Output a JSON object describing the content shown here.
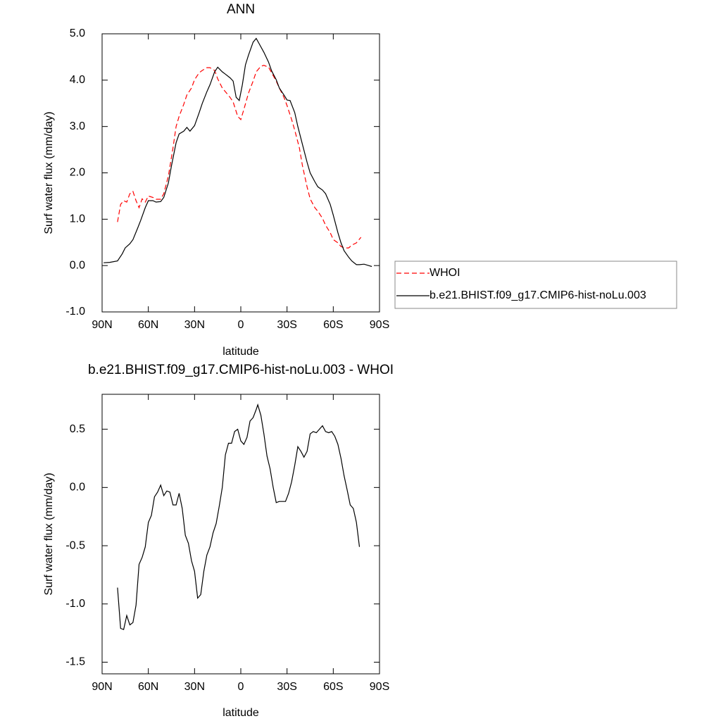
{
  "chart_data": [
    {
      "type": "line",
      "title": "ANN",
      "x_label": "latitude",
      "y_label": "Surf water flux (mm/day)",
      "xlim": [
        90,
        -90
      ],
      "xticks": [
        {
          "value": 90,
          "label": "90N"
        },
        {
          "value": 60,
          "label": "60N"
        },
        {
          "value": 30,
          "label": "30N"
        },
        0,
        {
          "value": -30,
          "label": "30S"
        },
        {
          "value": -60,
          "label": "60S"
        },
        {
          "value": -90,
          "label": "90S"
        }
      ],
      "ylim": [
        -1,
        5
      ],
      "yticks": [
        {
          "value": -1,
          "label": "-1.0"
        },
        {
          "value": 0,
          "label": "0.0"
        },
        {
          "value": 1,
          "label": "1.0"
        },
        {
          "value": 2,
          "label": "2.0"
        },
        {
          "value": 3,
          "label": "3.0"
        },
        {
          "value": 4,
          "label": "4.0"
        },
        {
          "value": 5,
          "label": "5.0"
        }
      ],
      "legend": "right",
      "series": [
        {
          "name": "WHOI",
          "color": "#ff0000",
          "dashed": true,
          "x": [
            80,
            78,
            76,
            74,
            72,
            70,
            68,
            66,
            64,
            62,
            60,
            57,
            55,
            52,
            50,
            47,
            44,
            42,
            40,
            37,
            35,
            32,
            30,
            27,
            25,
            22,
            20,
            17,
            15,
            12,
            10,
            7,
            5,
            2,
            0,
            -2,
            -5,
            -8,
            -10,
            -13,
            -15,
            -18,
            -20,
            -23,
            -25,
            -28,
            -30,
            -33,
            -35,
            -38,
            -40,
            -43,
            -45,
            -48,
            -50,
            -53,
            -55,
            -58,
            -60,
            -63,
            -65,
            -68,
            -70,
            -72,
            -75,
            -78
          ],
          "values": [
            0.94,
            1.32,
            1.4,
            1.37,
            1.55,
            1.6,
            1.4,
            1.25,
            1.44,
            1.37,
            1.5,
            1.47,
            1.43,
            1.43,
            1.55,
            1.93,
            2.54,
            3.0,
            3.22,
            3.48,
            3.68,
            3.83,
            4.01,
            4.16,
            4.21,
            4.27,
            4.27,
            4.21,
            4.03,
            3.83,
            3.75,
            3.63,
            3.53,
            3.22,
            3.15,
            3.37,
            3.72,
            3.98,
            4.18,
            4.3,
            4.32,
            4.28,
            4.16,
            3.98,
            3.83,
            3.63,
            3.45,
            3.15,
            2.92,
            2.54,
            2.15,
            1.7,
            1.44,
            1.25,
            1.17,
            1.02,
            0.87,
            0.71,
            0.56,
            0.49,
            0.41,
            0.38,
            0.38,
            0.44,
            0.49,
            0.61
          ]
        },
        {
          "name": "b.e21.BHIST.f09_g17.CMIP6-hist-noLu.003",
          "color": "#000000",
          "dashed": false,
          "x": [
            89,
            85,
            80,
            77,
            75,
            72,
            70,
            67,
            65,
            62,
            60,
            57,
            55,
            52,
            50,
            47,
            45,
            42,
            40,
            37,
            35,
            33,
            30,
            27,
            25,
            22,
            20,
            17,
            15,
            12,
            10,
            7,
            5,
            3,
            1,
            -1,
            -3,
            -5,
            -8,
            -10,
            -12,
            -15,
            -18,
            -20,
            -23,
            -25,
            -28,
            -30,
            -32,
            -35,
            -37,
            -40,
            -43,
            -45,
            -48,
            -50,
            -53,
            -55,
            -58,
            -60,
            -63,
            -65,
            -67,
            -70,
            -72,
            -75,
            -77,
            -80,
            -83,
            -85
          ],
          "values": [
            0.06,
            0.07,
            0.1,
            0.25,
            0.38,
            0.47,
            0.56,
            0.8,
            0.97,
            1.25,
            1.4,
            1.4,
            1.37,
            1.38,
            1.47,
            1.78,
            2.15,
            2.65,
            2.84,
            2.9,
            2.98,
            2.9,
            3.02,
            3.3,
            3.5,
            3.75,
            3.9,
            4.18,
            4.28,
            4.18,
            4.13,
            4.05,
            3.98,
            3.63,
            3.56,
            3.9,
            4.33,
            4.54,
            4.82,
            4.9,
            4.78,
            4.6,
            4.39,
            4.2,
            4.01,
            3.83,
            3.68,
            3.57,
            3.56,
            3.3,
            3.0,
            2.61,
            2.23,
            2.0,
            1.81,
            1.7,
            1.63,
            1.55,
            1.32,
            1.09,
            0.71,
            0.49,
            0.32,
            0.18,
            0.1,
            0.02,
            0.02,
            0.03,
            0.0,
            -0.02
          ]
        }
      ]
    },
    {
      "type": "line",
      "title": "b.e21.BHIST.f09_g17.CMIP6-hist-noLu.003 - WHOI",
      "x_label": "latitude",
      "y_label": "Surf water flux (mm/day)",
      "xlim": [
        90,
        -90
      ],
      "xticks": [
        {
          "value": 90,
          "label": "90N"
        },
        {
          "value": 60,
          "label": "60N"
        },
        {
          "value": 30,
          "label": "30N"
        },
        0,
        {
          "value": -30,
          "label": "30S"
        },
        {
          "value": -60,
          "label": "60S"
        },
        {
          "value": -90,
          "label": "90S"
        }
      ],
      "ylim": [
        -1.6,
        0.8
      ],
      "yticks": [
        -1.5,
        {
          "value": -1,
          "label": "-1.0"
        },
        -0.5,
        {
          "value": 0,
          "label": "0.0"
        },
        0.5
      ],
      "series": [
        {
          "color": "#000000",
          "dashed": false,
          "x": [
            80,
            78,
            76,
            74,
            72,
            70,
            68,
            66,
            64,
            62,
            60,
            58,
            56,
            54,
            52,
            50,
            48,
            46,
            44,
            42,
            40,
            38,
            36,
            34,
            32,
            30,
            28,
            26,
            24,
            22,
            20,
            18,
            16,
            14,
            12,
            10,
            8,
            6,
            4,
            2,
            0,
            -2,
            -4,
            -6,
            -8,
            -10,
            -11,
            -13,
            -15,
            -17,
            -19,
            -21,
            -23,
            -25,
            -27,
            -29,
            -31,
            -33,
            -35,
            -37,
            -39,
            -41,
            -43,
            -45,
            -47,
            -49,
            -51,
            -53,
            -55,
            -57,
            -59,
            -61,
            -63,
            -65,
            -67,
            -69,
            -71,
            -73,
            -75,
            -77
          ],
          "values": [
            -0.86,
            -1.21,
            -1.22,
            -1.1,
            -1.18,
            -1.16,
            -1.01,
            -0.66,
            -0.6,
            -0.51,
            -0.3,
            -0.24,
            -0.08,
            -0.04,
            0.02,
            -0.07,
            -0.03,
            -0.04,
            -0.15,
            -0.15,
            -0.05,
            -0.18,
            -0.41,
            -0.48,
            -0.63,
            -0.72,
            -0.95,
            -0.92,
            -0.72,
            -0.58,
            -0.51,
            -0.39,
            -0.31,
            -0.16,
            0.0,
            0.28,
            0.38,
            0.38,
            0.48,
            0.5,
            0.4,
            0.37,
            0.43,
            0.57,
            0.6,
            0.67,
            0.71,
            0.62,
            0.46,
            0.27,
            0.16,
            0.0,
            -0.13,
            -0.12,
            -0.12,
            -0.12,
            -0.05,
            0.05,
            0.19,
            0.35,
            0.31,
            0.26,
            0.31,
            0.46,
            0.48,
            0.47,
            0.5,
            0.53,
            0.48,
            0.47,
            0.48,
            0.44,
            0.37,
            0.25,
            0.1,
            -0.02,
            -0.15,
            -0.18,
            -0.3,
            -0.51
          ]
        }
      ]
    }
  ]
}
